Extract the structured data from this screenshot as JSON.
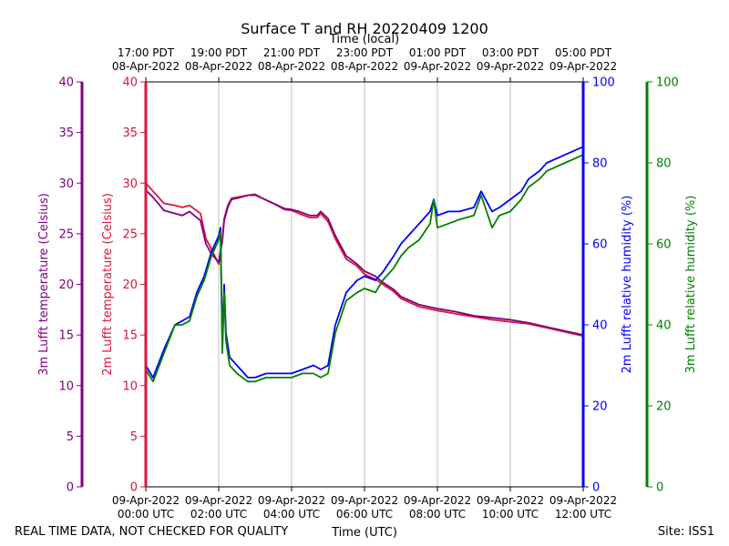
{
  "chart_data": {
    "type": "line",
    "title": "Surface T and RH 20220409 1200",
    "top_axis_title": "Time (local)",
    "xlabel": "Time (UTC)",
    "footer_left": "REAL TIME DATA, NOT CHECKED FOR QUALITY",
    "footer_right": "Site: ISS1",
    "x_range_hours": [
      0,
      12
    ],
    "x_ticks": [
      {
        "h": 0,
        "utc": [
          "09-Apr-2022",
          "00:00 UTC"
        ],
        "local": [
          "17:00 PDT",
          "08-Apr-2022"
        ]
      },
      {
        "h": 2,
        "utc": [
          "09-Apr-2022",
          "02:00 UTC"
        ],
        "local": [
          "19:00 PDT",
          "08-Apr-2022"
        ]
      },
      {
        "h": 4,
        "utc": [
          "09-Apr-2022",
          "04:00 UTC"
        ],
        "local": [
          "21:00 PDT",
          "08-Apr-2022"
        ]
      },
      {
        "h": 6,
        "utc": [
          "09-Apr-2022",
          "06:00 UTC"
        ],
        "local": [
          "23:00 PDT",
          "08-Apr-2022"
        ]
      },
      {
        "h": 8,
        "utc": [
          "09-Apr-2022",
          "08:00 UTC"
        ],
        "local": [
          "01:00 PDT",
          "09-Apr-2022"
        ]
      },
      {
        "h": 10,
        "utc": [
          "09-Apr-2022",
          "10:00 UTC"
        ],
        "local": [
          "03:00 PDT",
          "09-Apr-2022"
        ]
      },
      {
        "h": 12,
        "utc": [
          "09-Apr-2022",
          "12:00 UTC"
        ],
        "local": [
          "05:00 PDT",
          "09-Apr-2022"
        ]
      }
    ],
    "y_axes": [
      {
        "name": "3m-temp",
        "label": "3m Lufft temperature (Celsius)",
        "color": "#800080",
        "ylim": [
          0,
          40
        ],
        "ticks": [
          0,
          5,
          10,
          15,
          20,
          25,
          30,
          35,
          40
        ],
        "side": "outer-left"
      },
      {
        "name": "2m-temp",
        "label": "2m Lufft temperature (Celsius)",
        "color": "#dc143c",
        "ylim": [
          0,
          40
        ],
        "ticks": [
          0,
          5,
          10,
          15,
          20,
          25,
          30,
          35,
          40
        ],
        "side": "inner-left"
      },
      {
        "name": "2m-rh",
        "label": "2m Lufft relative humidity (%)",
        "color": "#0000ff",
        "ylim": [
          0,
          100
        ],
        "ticks": [
          0,
          20,
          40,
          60,
          80,
          100
        ],
        "side": "inner-right"
      },
      {
        "name": "3m-rh",
        "label": "3m Lufft relative humidity (%)",
        "color": "#008000",
        "ylim": [
          0,
          100
        ],
        "ticks": [
          0,
          20,
          40,
          60,
          80,
          100
        ],
        "side": "outer-right"
      }
    ],
    "series": [
      {
        "name": "2m Lufft temperature",
        "axis": "2m-temp",
        "color": "#dc143c",
        "x": [
          0,
          0.2,
          0.5,
          0.8,
          1.0,
          1.2,
          1.5,
          1.65,
          1.8,
          2.0,
          2.1,
          2.15,
          2.25,
          2.35,
          2.5,
          2.8,
          3.0,
          3.2,
          3.5,
          3.8,
          4.0,
          4.2,
          4.5,
          4.7,
          4.8,
          5.0,
          5.2,
          5.5,
          5.8,
          6.0,
          6.3,
          6.5,
          6.8,
          7.0,
          7.5,
          8.0,
          8.5,
          9.0,
          9.5,
          10.0,
          10.5,
          11.0,
          11.5,
          12.0
        ],
        "y": [
          30,
          29.2,
          28.0,
          27.8,
          27.6,
          27.8,
          27.0,
          24.5,
          23.5,
          22.0,
          24.5,
          26.5,
          27.8,
          28.5,
          28.6,
          28.8,
          28.8,
          28.5,
          28.0,
          27.4,
          27.3,
          27.0,
          26.6,
          26.6,
          27.0,
          26.2,
          24.5,
          22.5,
          21.8,
          21.0,
          20.5,
          20.0,
          19.3,
          18.6,
          17.8,
          17.4,
          17.1,
          16.8,
          16.5,
          16.3,
          16.1,
          15.7,
          15.3,
          14.9
        ]
      },
      {
        "name": "3m Lufft temperature",
        "axis": "3m-temp",
        "color": "#800080",
        "x": [
          0,
          0.2,
          0.5,
          0.8,
          1.0,
          1.2,
          1.5,
          1.65,
          1.8,
          2.0,
          2.1,
          2.15,
          2.25,
          2.35,
          2.5,
          2.8,
          3.0,
          3.2,
          3.5,
          3.8,
          4.0,
          4.2,
          4.5,
          4.7,
          4.8,
          5.0,
          5.2,
          5.5,
          5.8,
          6.0,
          6.3,
          6.5,
          6.8,
          7.0,
          7.5,
          8.0,
          8.5,
          9.0,
          9.5,
          10.0,
          10.5,
          11.0,
          11.5,
          12.0
        ],
        "y": [
          29.3,
          28.6,
          27.3,
          27.0,
          26.8,
          27.2,
          26.3,
          24.0,
          23.0,
          22.2,
          24.3,
          26.3,
          27.6,
          28.4,
          28.5,
          28.8,
          28.9,
          28.5,
          28.0,
          27.5,
          27.4,
          27.2,
          26.8,
          26.8,
          27.2,
          26.5,
          24.8,
          22.8,
          22.0,
          21.3,
          20.8,
          20.2,
          19.5,
          18.8,
          18.0,
          17.6,
          17.3,
          16.9,
          16.7,
          16.5,
          16.2,
          15.8,
          15.4,
          15.0
        ]
      },
      {
        "name": "2m Lufft relative humidity",
        "axis": "2m-rh",
        "color": "#0000ff",
        "x": [
          0,
          0.2,
          0.5,
          0.8,
          1.0,
          1.2,
          1.4,
          1.6,
          1.8,
          2.0,
          2.05,
          2.1,
          2.15,
          2.2,
          2.25,
          2.3,
          2.5,
          2.8,
          3.0,
          3.3,
          3.6,
          4.0,
          4.3,
          4.6,
          4.8,
          5.0,
          5.2,
          5.5,
          5.8,
          6.0,
          6.3,
          6.5,
          6.8,
          7.0,
          7.2,
          7.5,
          7.8,
          7.9,
          8.0,
          8.3,
          8.6,
          9.0,
          9.2,
          9.5,
          9.7,
          10.0,
          10.3,
          10.5,
          10.8,
          11.0,
          11.5,
          12.0
        ],
        "y": [
          30,
          27,
          34,
          40,
          41,
          42,
          48,
          52,
          58,
          62,
          64,
          35,
          50,
          38,
          35,
          32,
          30,
          27,
          27,
          28,
          28,
          28,
          29,
          30,
          29,
          30,
          40,
          48,
          51,
          52,
          51,
          53,
          57,
          60,
          62,
          65,
          68,
          71,
          67,
          68,
          68,
          69,
          73,
          68,
          69,
          71,
          73,
          76,
          78,
          80,
          82,
          84
        ]
      },
      {
        "name": "3m Lufft relative humidity",
        "axis": "3m-rh",
        "color": "#008000",
        "x": [
          0,
          0.2,
          0.5,
          0.8,
          1.0,
          1.2,
          1.4,
          1.6,
          1.8,
          2.0,
          2.05,
          2.1,
          2.15,
          2.2,
          2.25,
          2.3,
          2.5,
          2.8,
          3.0,
          3.3,
          3.6,
          4.0,
          4.3,
          4.6,
          4.8,
          5.0,
          5.2,
          5.5,
          5.8,
          6.0,
          6.3,
          6.5,
          6.8,
          7.0,
          7.2,
          7.5,
          7.8,
          7.9,
          8.0,
          8.3,
          8.6,
          9.0,
          9.2,
          9.5,
          9.7,
          10.0,
          10.3,
          10.5,
          10.8,
          11.0,
          11.5,
          12.0
        ],
        "y": [
          29,
          26,
          33,
          40,
          40,
          41,
          47,
          51,
          57,
          61,
          63,
          33,
          48,
          36,
          33,
          30,
          28,
          26,
          26,
          27,
          27,
          27,
          28,
          28,
          27,
          28,
          38,
          46,
          48,
          49,
          48,
          51,
          54,
          57,
          59,
          61,
          65,
          71,
          64,
          65,
          66,
          67,
          72,
          64,
          67,
          68,
          71,
          74,
          76,
          78,
          80,
          82
        ]
      }
    ]
  }
}
